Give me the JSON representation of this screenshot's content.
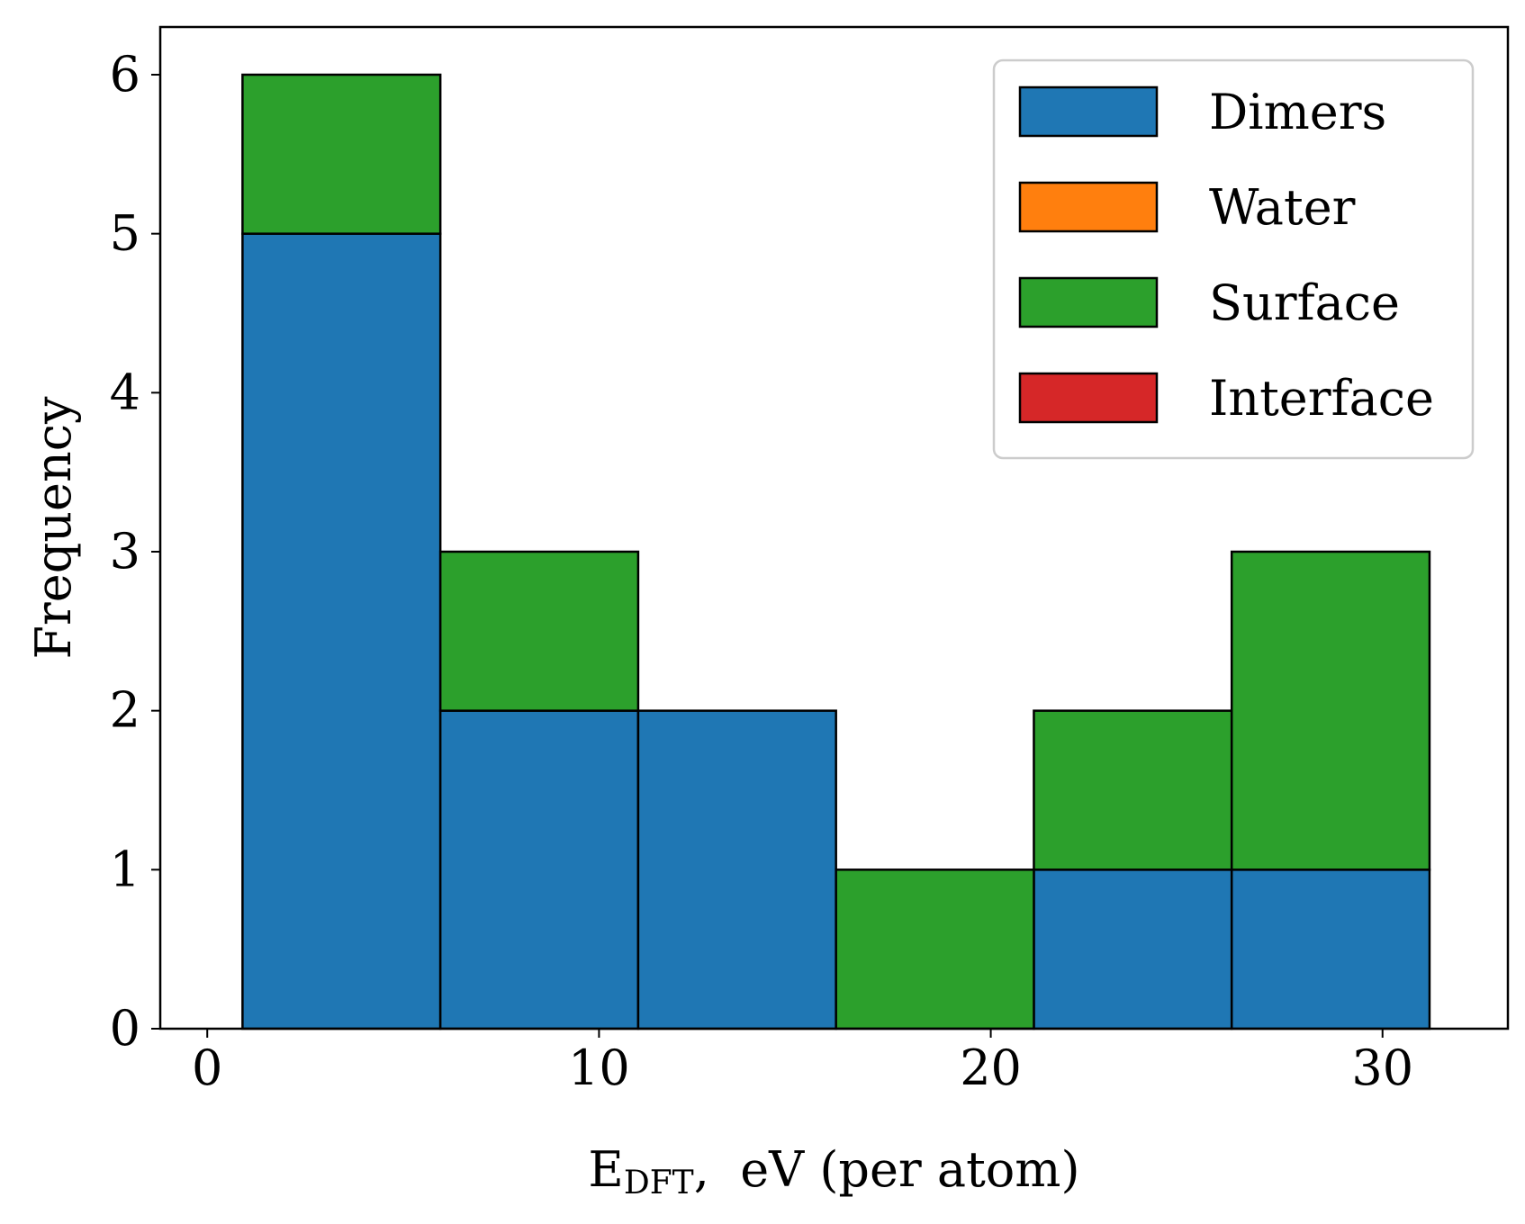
{
  "chart_data": {
    "type": "bar",
    "subtype": "stacked-histogram",
    "title": "",
    "xlabel": "E_DFT, eV (per atom)",
    "xlabel_main": "E",
    "xlabel_sub": "DFT",
    "xlabel_rest": ",  eV (per atom)",
    "ylabel": "Frequency",
    "xlim": [
      -1.2,
      33.2
    ],
    "ylim": [
      0,
      6.3
    ],
    "xticks": [
      0,
      10,
      20,
      30
    ],
    "xtick_labels": [
      "0",
      "10",
      "20",
      "30"
    ],
    "yticks": [
      0,
      1,
      2,
      3,
      4,
      5,
      6
    ],
    "ytick_labels": [
      "0",
      "1",
      "2",
      "3",
      "4",
      "5",
      "6"
    ],
    "bin_edges": [
      0.9,
      5.95,
      11.0,
      16.05,
      21.1,
      26.15,
      31.2
    ],
    "grid": false,
    "legend_position": "top-right",
    "series": [
      {
        "name": "Dimers",
        "color": "#1f77b4",
        "values": [
          5,
          2,
          2,
          0,
          1,
          1
        ]
      },
      {
        "name": "Water",
        "color": "#ff7f0e",
        "values": [
          0,
          0,
          0,
          0,
          0,
          0
        ]
      },
      {
        "name": "Surface",
        "color": "#2ca02c",
        "values": [
          1,
          1,
          0,
          1,
          1,
          2
        ]
      },
      {
        "name": "Interface",
        "color": "#d62728",
        "values": [
          0,
          0,
          0,
          0,
          0,
          0
        ]
      }
    ]
  }
}
